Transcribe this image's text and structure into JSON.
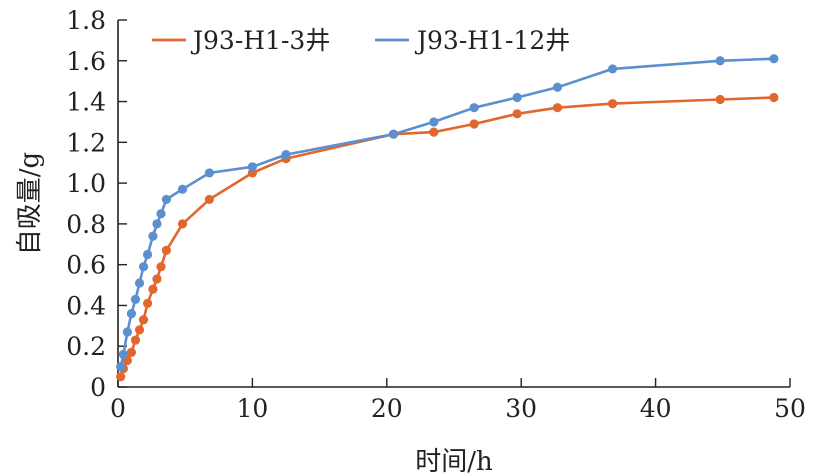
{
  "chart_data": {
    "type": "line",
    "xlabel": "时间/h",
    "ylabel": "自吸量/g",
    "xlim": [
      0,
      50
    ],
    "ylim": [
      0,
      1.8
    ],
    "x_ticks": [
      "0",
      "10",
      "20",
      "30",
      "40",
      "50"
    ],
    "y_ticks": [
      "0",
      "0.2",
      "0.4",
      "0.6",
      "0.8",
      "1.0",
      "1.2",
      "1.4",
      "1.6",
      "1.8"
    ],
    "grid": false,
    "legend_position": "top-left",
    "series": [
      {
        "name": "J93-H1-3井",
        "color": "#e0672e",
        "x": [
          0.2,
          0.4,
          0.7,
          1.0,
          1.3,
          1.6,
          1.9,
          2.2,
          2.6,
          2.9,
          3.2,
          3.6,
          4.8,
          6.8,
          10.0,
          12.5,
          20.5,
          23.5,
          26.5,
          29.7,
          32.7,
          36.8,
          44.8,
          48.8
        ],
        "y": [
          0.05,
          0.09,
          0.13,
          0.17,
          0.23,
          0.28,
          0.33,
          0.41,
          0.48,
          0.53,
          0.59,
          0.67,
          0.8,
          0.92,
          1.05,
          1.12,
          1.24,
          1.25,
          1.29,
          1.34,
          1.37,
          1.39,
          1.41,
          1.42
        ]
      },
      {
        "name": "J93-H1-12井",
        "color": "#5b8fce",
        "x": [
          0.2,
          0.4,
          0.7,
          1.0,
          1.3,
          1.6,
          1.9,
          2.2,
          2.6,
          2.9,
          3.2,
          3.6,
          4.8,
          6.8,
          10.0,
          12.5,
          20.5,
          23.5,
          26.5,
          29.7,
          32.7,
          36.8,
          44.8,
          48.8
        ],
        "y": [
          0.1,
          0.16,
          0.27,
          0.36,
          0.43,
          0.51,
          0.59,
          0.65,
          0.74,
          0.8,
          0.85,
          0.92,
          0.97,
          1.05,
          1.08,
          1.14,
          1.24,
          1.3,
          1.37,
          1.42,
          1.47,
          1.56,
          1.6,
          1.61
        ]
      }
    ]
  }
}
